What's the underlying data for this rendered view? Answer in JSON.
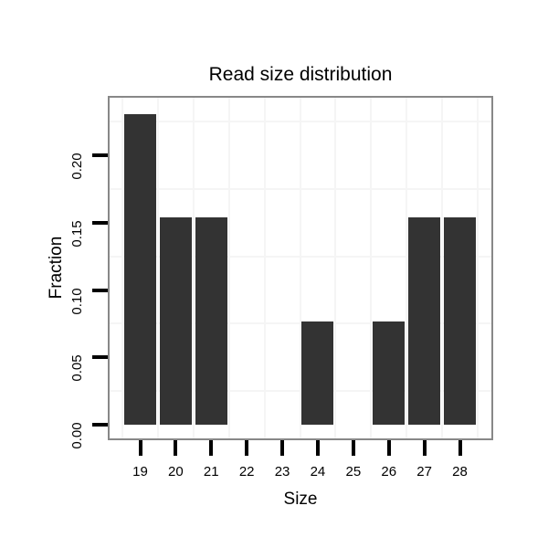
{
  "chart_data": {
    "type": "bar",
    "title": "Read size distribution",
    "xlabel": "Size",
    "ylabel": "Fraction",
    "categories": [
      "19",
      "20",
      "21",
      "22",
      "23",
      "24",
      "25",
      "26",
      "27",
      "28"
    ],
    "values": [
      0.2308,
      0.1538,
      0.1538,
      0,
      0,
      0.0769,
      0,
      0.0769,
      0.1538,
      0.1538
    ],
    "ytick_labels": [
      "0.00",
      "0.05",
      "0.10",
      "0.15",
      "0.20"
    ],
    "ytick_values": [
      0,
      0.05,
      0.1,
      0.15,
      0.2
    ],
    "ylim": [
      -0.0115,
      0.2427
    ],
    "grid_horizontal_values": [
      0.025,
      0.075,
      0.125,
      0.175,
      0.225
    ],
    "grid_vertical": "category-boundaries",
    "legend": "none",
    "colors": {
      "bar": "#333333",
      "grid": "#f5f5f5",
      "panel_border": "#888888",
      "axis_text": "#000000",
      "tick": "#000000",
      "background": "#ffffff"
    }
  }
}
